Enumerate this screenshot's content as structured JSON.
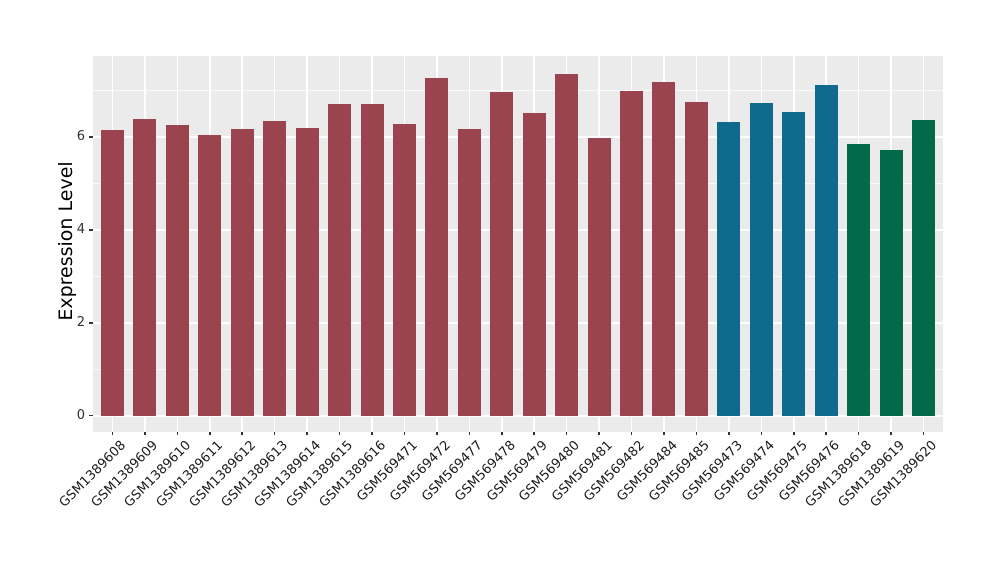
{
  "chart_data": {
    "type": "bar",
    "title": "",
    "xlabel": "",
    "ylabel": "Expression Level",
    "ylim": [
      0,
      7.74
    ],
    "yticks": [
      "0",
      "2",
      "4",
      "6"
    ],
    "ytick_values": [
      0,
      2,
      4,
      6
    ],
    "yticks_minor_values": [
      1,
      3,
      5,
      7
    ],
    "grid": "major and minor horizontal white lines, vertical white line at each bar center, gray panel",
    "legend_position": "none",
    "panel_bg": "#EBEBEB",
    "axis_text_color": "#303030",
    "categories": [
      "GSM1389608",
      "GSM1389609",
      "GSM1389610",
      "GSM1389611",
      "GSM1389612",
      "GSM1389613",
      "GSM1389614",
      "GSM1389615",
      "GSM1389616",
      "GSM569471",
      "GSM569472",
      "GSM569477",
      "GSM569478",
      "GSM569479",
      "GSM569480",
      "GSM569481",
      "GSM569482",
      "GSM569484",
      "GSM569485",
      "GSM569473",
      "GSM569474",
      "GSM569475",
      "GSM569476",
      "GSM1389618",
      "GSM1389619",
      "GSM1389620"
    ],
    "values": [
      6.14,
      6.39,
      6.25,
      6.05,
      6.17,
      6.35,
      6.2,
      6.72,
      6.72,
      6.27,
      7.27,
      6.18,
      6.96,
      6.52,
      7.35,
      5.97,
      7.0,
      7.18,
      6.75,
      6.33,
      6.74,
      6.54,
      7.12,
      5.86,
      5.73,
      6.36
    ],
    "bar_groups": [
      "group1",
      "group1",
      "group1",
      "group1",
      "group1",
      "group1",
      "group1",
      "group1",
      "group1",
      "group1",
      "group1",
      "group1",
      "group1",
      "group1",
      "group1",
      "group1",
      "group1",
      "group1",
      "group1",
      "group2",
      "group2",
      "group2",
      "group2",
      "group3",
      "group3",
      "group3"
    ],
    "group_colors": {
      "group1": "#9C4350",
      "group2": "#0F6A8D",
      "group3": "#026A49"
    }
  }
}
